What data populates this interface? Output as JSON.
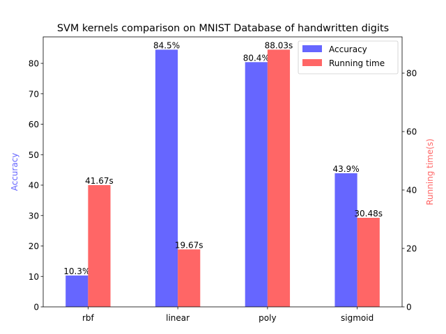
{
  "chart_data": {
    "type": "bar",
    "title": "SVM kernels comparison on MNIST Database of handwritten digits",
    "categories": [
      "rbf",
      "linear",
      "poly",
      "sigmoid"
    ],
    "series": [
      {
        "name": "Accuracy",
        "axis": "left",
        "color": "#6666ff",
        "values": [
          10.3,
          84.5,
          80.4,
          43.9
        ],
        "labels": [
          "10.3%",
          "84.5%",
          "80.4%",
          "43.9%"
        ]
      },
      {
        "name": "Running time",
        "axis": "right",
        "color": "#ff6666",
        "values": [
          41.67,
          19.67,
          88.03,
          30.48
        ],
        "labels": [
          "41.67s",
          "19.67s",
          "88.03s",
          "30.48s"
        ]
      }
    ],
    "ylabel_left": "Accuracy",
    "ylabel_right": "Running time(s)",
    "ylim_left": [
      0,
      88.7
    ],
    "ylim_right": [
      0,
      92.4
    ],
    "yticks_left": [
      "0",
      "10",
      "20",
      "30",
      "40",
      "50",
      "60",
      "70",
      "80"
    ],
    "yticks_right": [
      "0",
      "20",
      "40",
      "60",
      "80"
    ],
    "grid": false,
    "legend_position": "top-right"
  }
}
